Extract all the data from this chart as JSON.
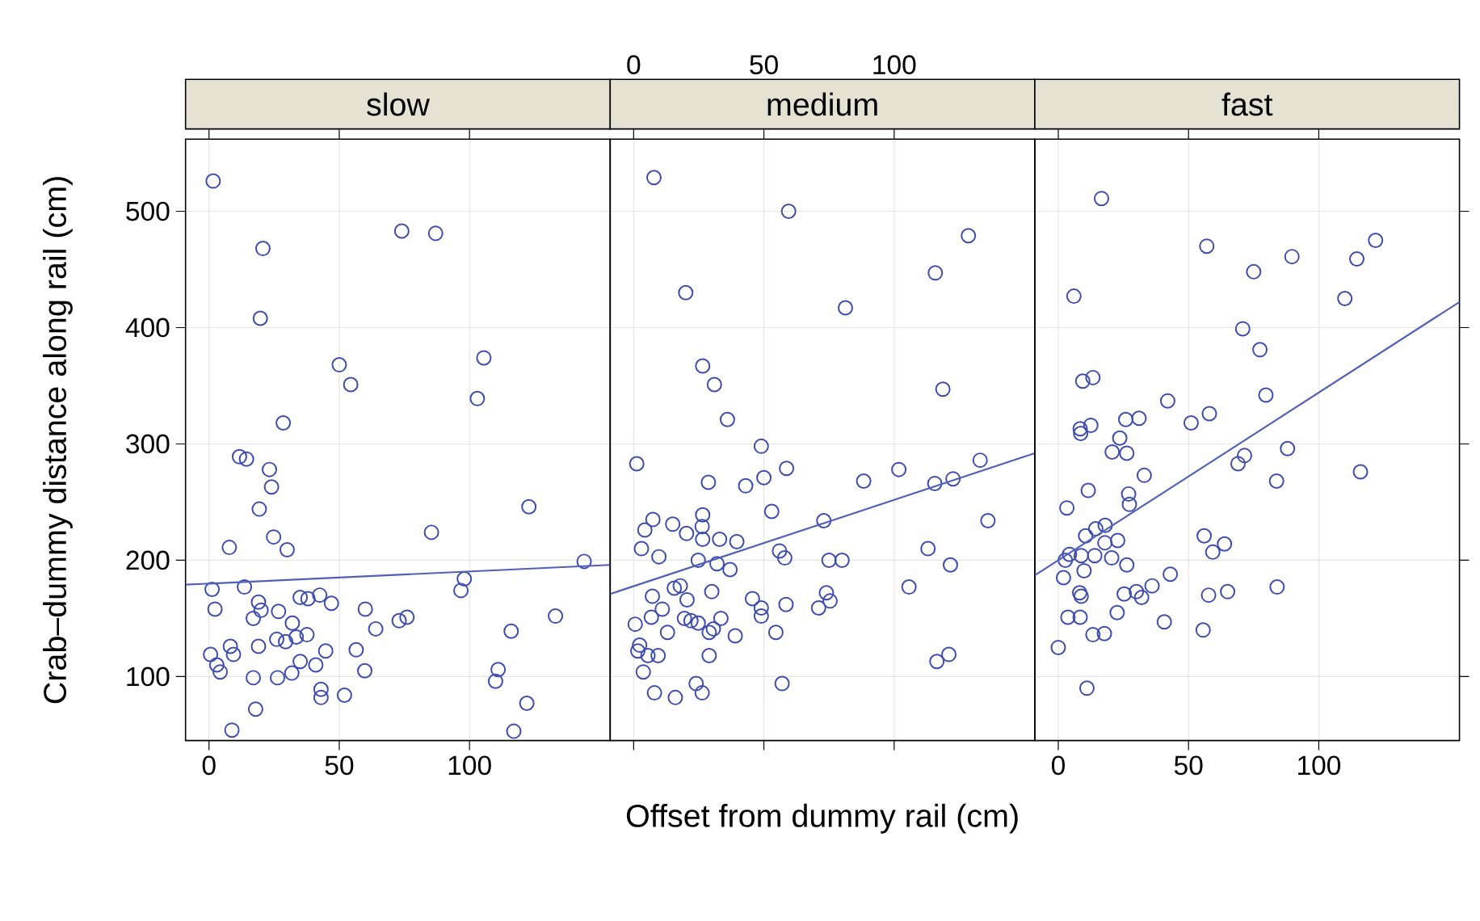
{
  "chart_data": [
    {
      "type": "scatter",
      "title": "slow",
      "ylabel": "Crab–dummy distance along rail (cm)",
      "xlim": [
        -9,
        154
      ],
      "ylim": [
        45,
        562
      ],
      "xticks": [
        0,
        50,
        100
      ],
      "yticks": [
        100,
        200,
        300,
        400,
        500
      ],
      "grid": true,
      "marker": "circle",
      "series": [
        {
          "color": "#3c4bb0",
          "x": [
            1.6,
            20.7,
            19.7,
            74,
            87,
            50,
            54.4,
            105.5,
            103,
            28.5,
            11.7,
            14.4,
            23.2,
            24,
            19.3,
            122.8,
            24.8,
            30,
            7.8,
            85.4,
            144,
            98,
            96.7,
            1.2,
            13.6,
            2.3,
            19,
            20,
            17,
            26.7,
            35,
            38,
            42.5,
            47,
            60,
            64,
            73,
            76,
            133,
            116,
            32,
            37.6,
            26,
            29.4,
            33.5,
            19,
            8.2,
            9.4,
            0.6,
            3,
            4.3,
            35,
            41,
            44.8,
            56.5,
            59.8,
            17,
            26.3,
            31.8,
            111,
            110,
            43,
            43,
            52,
            17.9,
            122,
            8.8,
            117
          ],
          "values": [
            526,
            468,
            408,
            483,
            481,
            368,
            351,
            374,
            339,
            318,
            289,
            287,
            278,
            263,
            244,
            246,
            220,
            209,
            211,
            224,
            199,
            184,
            174,
            175,
            177,
            158,
            164,
            157,
            150,
            156,
            168,
            167,
            170,
            163,
            158,
            141,
            148,
            151,
            152,
            139,
            146,
            136,
            132,
            130,
            134,
            126,
            126,
            119,
            119,
            110,
            104,
            113,
            110,
            122,
            123,
            105,
            99,
            99,
            103,
            106,
            96,
            89,
            82,
            84,
            72,
            77,
            54,
            53
          ]
        },
        {
          "type": "line",
          "marker": "none",
          "color": "#5060b8",
          "x": [
            -9,
            154
          ],
          "values": [
            179,
            196
          ]
        }
      ]
    },
    {
      "type": "scatter",
      "title": "medium",
      "xlabel": "Offset from dummy rail (cm)",
      "xlim": [
        -9,
        154
      ],
      "ylim": [
        45,
        562
      ],
      "xticks": [
        0,
        50,
        100
      ],
      "yticks": [
        100,
        200,
        300,
        400,
        500
      ],
      "grid": true,
      "marker": "circle",
      "tick_labels": "x",
      "series": [
        {
          "color": "#3c4bb0",
          "x": [
            7.8,
            59.5,
            128.5,
            115.8,
            20,
            81.3,
            26.5,
            31,
            118.7,
            36,
            49,
            1.2,
            58.7,
            50,
            43,
            28.7,
            88.3,
            101.8,
            115.6,
            122.6,
            133,
            53,
            136,
            73,
            7.4,
            15,
            26.5,
            4.3,
            20.3,
            26.3,
            26.5,
            33,
            39.6,
            3,
            9.7,
            24.8,
            32,
            37,
            56,
            58,
            75,
            80,
            113,
            121.6,
            105.7,
            7.2,
            11,
            15.6,
            17.9,
            20.5,
            30,
            45.6,
            49,
            49,
            58.5,
            71,
            74,
            75.4,
            0.6,
            6.8,
            13,
            19.5,
            22,
            24.8,
            33.5,
            29,
            30.6,
            39,
            54.6,
            2.3,
            1.6,
            5.5,
            9.4,
            29,
            3.7,
            116.4,
            121,
            8,
            16,
            24,
            26.3,
            57
          ],
          "values": [
            529,
            500,
            479,
            447,
            430,
            417,
            367,
            351,
            347,
            321,
            298,
            283,
            279,
            271,
            264,
            267,
            268,
            278,
            266,
            270,
            286,
            242,
            234,
            234,
            235,
            231,
            239,
            226,
            223,
            229,
            218,
            218,
            216,
            210,
            203,
            200,
            197,
            192,
            208,
            202,
            200,
            200,
            210,
            196,
            177,
            169,
            158,
            176,
            178,
            166,
            173,
            167,
            159,
            152,
            162,
            159,
            172,
            165,
            145,
            151,
            138,
            150,
            148,
            146,
            150,
            138,
            141,
            135,
            138,
            127,
            122,
            118,
            118,
            118,
            104,
            113,
            119,
            86,
            82,
            94,
            86,
            94
          ]
        },
        {
          "type": "line",
          "marker": "none",
          "color": "#5060b8",
          "x": [
            -9,
            154
          ],
          "values": [
            171,
            292
          ]
        }
      ]
    },
    {
      "type": "scatter",
      "title": "fast",
      "xlim": [
        -9,
        154
      ],
      "ylim": [
        45,
        562
      ],
      "xticks": [
        0,
        50,
        100
      ],
      "yticks": [
        100,
        200,
        300,
        400,
        500
      ],
      "grid": true,
      "marker": "circle",
      "tick_labels": "x",
      "series": [
        {
          "color": "#3c4bb0",
          "x": [
            16.6,
            57,
            89.7,
            75,
            114.6,
            121.8,
            6,
            110,
            70.8,
            77.4,
            79.7,
            9.4,
            13.3,
            42,
            58,
            51,
            8.4,
            8.6,
            12.5,
            25.9,
            31,
            23.6,
            20.7,
            26.3,
            71.5,
            69,
            88,
            33,
            83.8,
            116,
            11.5,
            3.3,
            27,
            27.3,
            18,
            14.4,
            10.5,
            22.8,
            17.9,
            4.3,
            2.7,
            8.8,
            14,
            20.5,
            26.3,
            9.9,
            2,
            8.2,
            8.8,
            25.3,
            30,
            32,
            36,
            43,
            56,
            59.3,
            63.8,
            57.7,
            65,
            84,
            3.7,
            8.4,
            22.6,
            13.3,
            17.7,
            40.7,
            55.6,
            0,
            11
          ],
          "values": [
            511,
            470,
            461,
            448,
            459,
            475,
            427,
            425,
            399,
            381,
            342,
            354,
            357,
            337,
            326,
            318,
            313,
            309,
            316,
            321,
            322,
            305,
            293,
            292,
            290,
            283,
            296,
            273,
            268,
            276,
            260,
            245,
            257,
            248,
            230,
            227,
            221,
            217,
            215,
            205,
            200,
            204,
            204,
            202,
            196,
            191,
            185,
            172,
            169,
            171,
            173,
            168,
            178,
            188,
            221,
            207,
            214,
            170,
            173,
            177,
            151,
            151,
            155,
            136,
            137,
            147,
            140,
            125,
            90
          ]
        },
        {
          "type": "line",
          "marker": "none",
          "color": "#5060b8",
          "x": [
            -9,
            154
          ],
          "values": [
            187,
            422
          ]
        }
      ]
    }
  ]
}
